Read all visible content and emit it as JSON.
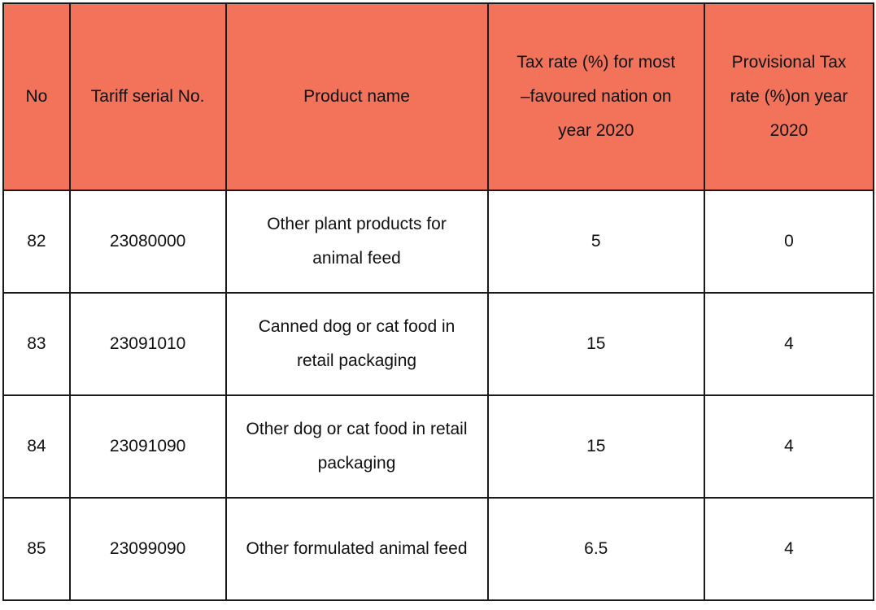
{
  "table": {
    "headers": {
      "no": "No",
      "serial": "Tariff serial No.",
      "product": "Product name",
      "mfn_rate": "Tax rate (%) for most\n–favoured nation on\nyear 2020",
      "provisional_rate": "Provisional Tax\nrate (%)on year\n2020"
    },
    "rows": [
      {
        "no": "82",
        "serial": "23080000",
        "product": "Other plant products for\nanimal feed",
        "mfn_rate": "5",
        "provisional_rate": "0"
      },
      {
        "no": "83",
        "serial": "23091010",
        "product": "Canned dog or cat food in\nretail packaging",
        "mfn_rate": "15",
        "provisional_rate": "4"
      },
      {
        "no": "84",
        "serial": "23091090",
        "product": "Other dog or cat food in retail\npackaging",
        "mfn_rate": "15",
        "provisional_rate": "4"
      },
      {
        "no": "85",
        "serial": "23099090",
        "product": "Other formulated animal feed",
        "mfn_rate": "6.5",
        "provisional_rate": "4"
      }
    ]
  },
  "colors": {
    "header_background": "#f2735a",
    "border": "#1a1a1a",
    "cell_background": "#ffffff"
  }
}
